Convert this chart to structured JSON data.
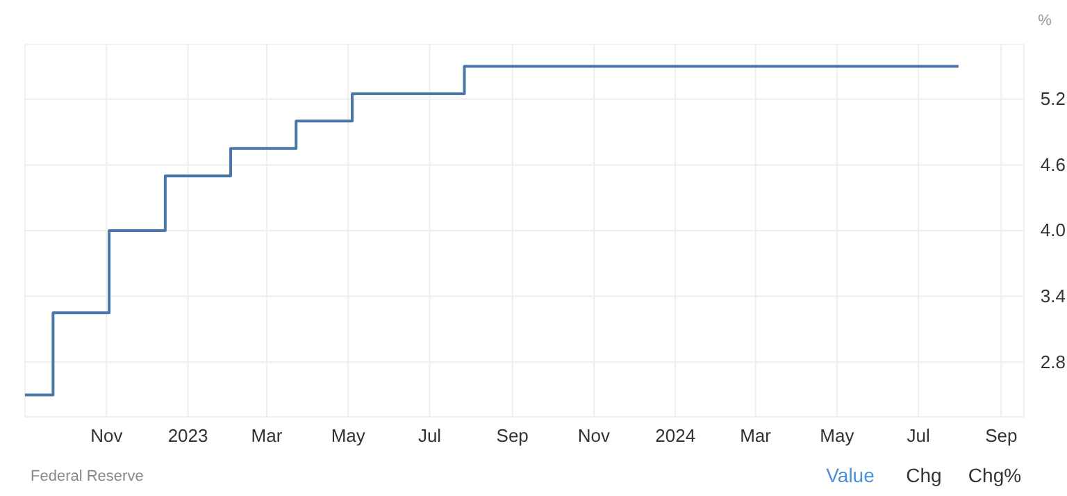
{
  "chart_data": {
    "type": "step",
    "ylabel": "%",
    "annotations": [
      "Federal Reserve",
      "Value",
      "Chg",
      "Chg%"
    ],
    "x": [
      "2022-09-01",
      "2022-09-22",
      "2022-11-03",
      "2022-12-15",
      "2023-02-02",
      "2023-03-23",
      "2023-05-04",
      "2023-07-27",
      "2024-07-31"
    ],
    "series": [
      {
        "color": "#4a76a8",
        "values": [
          2.5,
          3.25,
          4.0,
          4.5,
          4.75,
          5.0,
          5.25,
          5.5,
          5.5
        ]
      }
    ],
    "xlim": [
      "2022-09-01",
      "2024-09-18"
    ],
    "xticks": [
      {
        "value": "2022-11-01",
        "label": "Nov"
      },
      {
        "value": "2023-01-01",
        "label": "2023"
      },
      {
        "value": "2023-03-01",
        "label": "Mar"
      },
      {
        "value": "2023-05-01",
        "label": "May"
      },
      {
        "value": "2023-07-01",
        "label": "Jul"
      },
      {
        "value": "2023-09-01",
        "label": "Sep"
      },
      {
        "value": "2023-11-01",
        "label": "Nov"
      },
      {
        "value": "2024-01-01",
        "label": "2024"
      },
      {
        "value": "2024-03-01",
        "label": "Mar"
      },
      {
        "value": "2024-05-01",
        "label": "May"
      },
      {
        "value": "2024-07-01",
        "label": "Jul"
      },
      {
        "value": "2024-09-01",
        "label": "Sep"
      }
    ],
    "ylim": [
      2.3,
      5.7
    ],
    "yticks": [
      2.8,
      3.4,
      {
        "value": 4,
        "label": "4.0"
      },
      4.6,
      5.2
    ],
    "grid": true
  }
}
